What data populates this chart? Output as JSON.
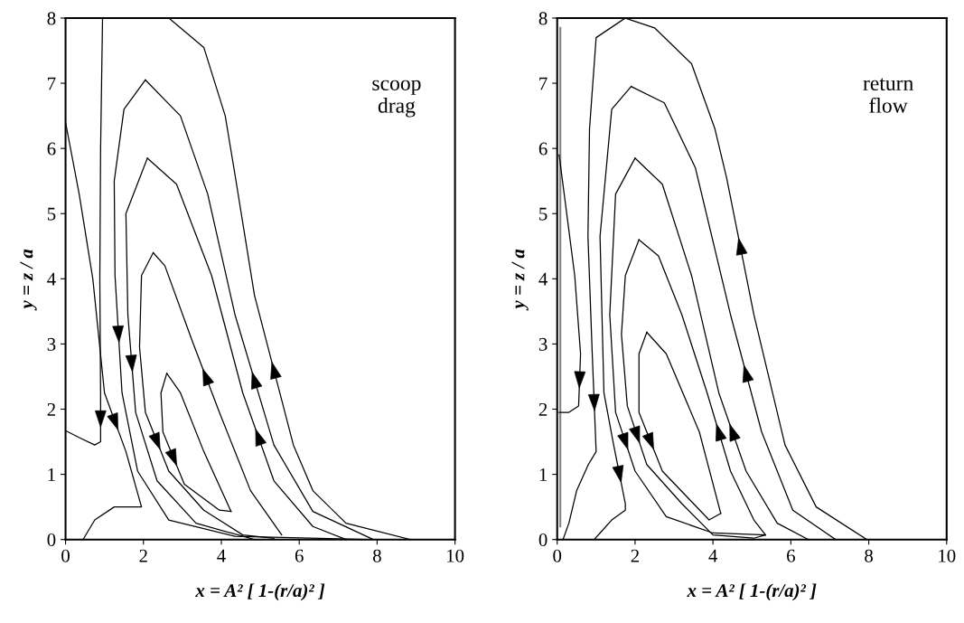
{
  "chart_data": [
    {
      "type": "line",
      "xlabel": "x = A² [ 1-(r/a)² ]",
      "ylabel": "y = z / a",
      "annotations": [
        "scoop\ndrag"
      ],
      "xlim": [
        0,
        10
      ],
      "ylim": [
        0,
        8
      ],
      "xticks": [
        0,
        2,
        4,
        6,
        8,
        10
      ],
      "yticks": [
        0,
        1,
        2,
        3,
        4,
        5,
        6,
        7,
        8
      ],
      "grid": false,
      "legend": false,
      "marker": "none",
      "line_style": "solid",
      "series": [
        {
          "color": "#000000",
          "x": [
            0.95,
            0.9,
            0.88,
            0.9,
            0.9,
            0.75,
            0.4,
            0
          ],
          "values": [
            8,
            6.0,
            4.0,
            2.2,
            1.5,
            1.45,
            1.55,
            1.67
          ]
        },
        {
          "color": "#000000",
          "x": [
            0,
            0.35,
            0.7,
            1.0,
            1.55,
            1.95,
            1.25,
            0.75,
            0.45
          ],
          "values": [
            6.4,
            5.3,
            4.0,
            2.25,
            1.35,
            0.5,
            0.5,
            0.3,
            0
          ]
        },
        {
          "color": "#000000",
          "x": [
            8.85,
            7.2,
            6.35,
            5.85,
            4.85,
            4.35,
            4.1,
            3.55,
            2.65
          ],
          "values": [
            0,
            0.25,
            0.75,
            1.45,
            3.75,
            5.6,
            6.5,
            7.55,
            8
          ]
        },
        {
          "color": "#000000",
          "x": [
            2.05,
            1.5,
            1.25,
            1.27,
            1.45,
            1.85,
            2.65,
            4.35,
            7.7
          ],
          "values": [
            7.05,
            6.6,
            5.5,
            4.05,
            2.25,
            1.05,
            0.3,
            0.05,
            0
          ]
        },
        {
          "color": "#000000",
          "x": [
            7.9,
            6.35,
            5.35,
            4.35,
            3.65,
            2.95,
            2.05
          ],
          "values": [
            0,
            0.43,
            1.45,
            3.45,
            5.3,
            6.5,
            7.05
          ]
        },
        {
          "color": "#000000",
          "x": [
            2.1,
            1.55,
            1.6,
            1.8,
            2.35,
            3.35,
            4.85
          ],
          "values": [
            5.85,
            5.0,
            3.45,
            1.95,
            0.9,
            0.25,
            0
          ]
        },
        {
          "color": "#000000",
          "x": [
            7.2,
            6.35,
            5.35,
            4.55,
            3.75,
            2.85,
            2.1
          ],
          "values": [
            0,
            0.2,
            0.9,
            2.25,
            4.05,
            5.45,
            5.85
          ]
        },
        {
          "color": "#000000",
          "x": [
            2.25,
            1.95,
            1.9,
            2.05,
            2.65,
            3.55,
            4.55,
            5.35
          ],
          "values": [
            4.4,
            4.05,
            2.95,
            1.95,
            1.05,
            0.45,
            0.07,
            0.02
          ]
        },
        {
          "color": "#000000",
          "x": [
            5.55,
            4.75,
            3.95,
            3.25,
            2.55,
            2.25
          ],
          "values": [
            0.07,
            0.75,
            1.95,
            3.05,
            4.2,
            4.4
          ]
        },
        {
          "color": "#000000",
          "x": [
            2.6,
            2.45,
            2.5,
            3.05,
            3.95,
            4.25
          ],
          "values": [
            2.55,
            2.25,
            1.65,
            0.85,
            0.45,
            0.43
          ]
        },
        {
          "color": "#000000",
          "x": [
            4.25,
            3.55,
            2.95,
            2.6
          ],
          "values": [
            0.43,
            1.35,
            2.25,
            2.55
          ]
        }
      ]
    },
    {
      "type": "line",
      "xlabel": "x = A² [ 1-(r/a)² ]",
      "ylabel": "y = z / a",
      "annotations": [
        "return\nflow"
      ],
      "xlim": [
        0,
        10
      ],
      "ylim": [
        0,
        8
      ],
      "xticks": [
        0,
        2,
        4,
        6,
        8,
        10
      ],
      "yticks": [
        0,
        1,
        2,
        3,
        4,
        5,
        6,
        7,
        8
      ],
      "grid": false,
      "legend": false,
      "marker": "none",
      "line_style": "solid",
      "series": [
        {
          "color": "#888888",
          "x": [
            0.08,
            0.08
          ],
          "values": [
            7.85,
            0.2
          ]
        },
        {
          "color": "#000000",
          "x": [
            0.05,
            0.45,
            0.6,
            0.55,
            0.3,
            0.05
          ],
          "values": [
            5.9,
            4.05,
            2.85,
            2.05,
            1.95,
            1.95
          ]
        },
        {
          "color": "#000000",
          "x": [
            1.75,
            1.0,
            0.83,
            0.79,
            0.9,
            1.0,
            0.8,
            0.5,
            0.3,
            0.15
          ],
          "values": [
            8,
            7.7,
            6.3,
            4.65,
            2.85,
            1.35,
            1.15,
            0.75,
            0.25,
            0
          ]
        },
        {
          "color": "#000000",
          "x": [
            7.95,
            6.65,
            5.85,
            5.05,
            4.35,
            4.05,
            3.45,
            2.5,
            1.75
          ],
          "values": [
            0,
            0.5,
            1.45,
            3.45,
            5.55,
            6.3,
            7.3,
            7.85,
            8
          ]
        },
        {
          "color": "#000000",
          "x": [
            1.9,
            1.4,
            1.1,
            1.2,
            1.45,
            1.75,
            1.75,
            1.4,
            1.1,
            0.95
          ],
          "values": [
            6.95,
            6.6,
            4.65,
            2.25,
            1.45,
            0.55,
            0.45,
            0.3,
            0.1,
            0
          ]
        },
        {
          "color": "#000000",
          "x": [
            7.15,
            6.05,
            5.25,
            4.45,
            3.55,
            2.75,
            1.9
          ],
          "values": [
            0,
            0.45,
            1.65,
            3.45,
            5.7,
            6.7,
            6.95
          ]
        },
        {
          "color": "#000000",
          "x": [
            2.0,
            1.5,
            1.35,
            1.5,
            2.0,
            2.8,
            4.0,
            5.35
          ],
          "values": [
            5.85,
            5.3,
            3.45,
            1.95,
            1.05,
            0.35,
            0.1,
            0.07
          ]
        },
        {
          "color": "#000000",
          "x": [
            6.45,
            5.65,
            4.85,
            4.15,
            3.45,
            2.7,
            2.0
          ],
          "values": [
            0,
            0.25,
            1.05,
            2.25,
            4.05,
            5.45,
            5.85
          ]
        },
        {
          "color": "#000000",
          "x": [
            2.1,
            1.75,
            1.65,
            1.8,
            2.3,
            3.2,
            4.0,
            5.05,
            5.35
          ],
          "values": [
            4.6,
            4.05,
            3.15,
            2.05,
            1.15,
            0.55,
            0.07,
            0.02,
            0.07
          ]
        },
        {
          "color": "#000000",
          "x": [
            5.35,
            5.05,
            4.45,
            3.85,
            3.2,
            2.6,
            2.1
          ],
          "values": [
            0.07,
            0.3,
            1.05,
            2.25,
            3.45,
            4.35,
            4.6
          ]
        },
        {
          "color": "#000000",
          "x": [
            2.3,
            2.1,
            2.1,
            2.7,
            3.5,
            3.9,
            4.2
          ],
          "values": [
            3.18,
            2.85,
            1.95,
            1.05,
            0.55,
            0.3,
            0.4
          ]
        },
        {
          "color": "#000000",
          "x": [
            4.2,
            3.65,
            2.8,
            2.3
          ],
          "values": [
            0.4,
            1.65,
            2.85,
            3.18
          ]
        }
      ]
    }
  ]
}
